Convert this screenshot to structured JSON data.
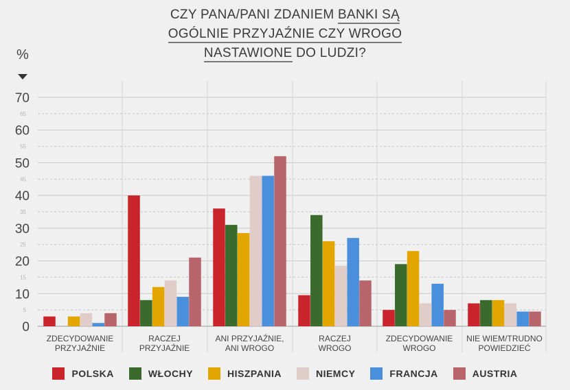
{
  "title": {
    "line1": [
      "CZY PANA/PANI ZDANIEM ",
      "BANKI SĄ"
    ],
    "line2": "OGÓLNIE PRZYJAŹNIE CZY WROGO",
    "line3": [
      "NASTAWIONE",
      " DO LUDZI?"
    ]
  },
  "unit_label": "%",
  "colors": {
    "POLSKA": "#c9242b",
    "WŁOCHY": "#3b6b2c",
    "HISZPANIA": "#e3a600",
    "NIEMCY": "#e0cdca",
    "FRANCJA": "#4a8fdc",
    "AUSTRIA": "#b7646a"
  },
  "chart_data": {
    "type": "bar",
    "title": "CZY PANA/PANI ZDANIEM BANKI SĄ OGÓLNIE PRZYJAŹNIE CZY WROGO NASTAWIONE DO LUDZI?",
    "ylabel": "%",
    "ylim": [
      0,
      70
    ],
    "major_ticks": [
      0,
      10,
      20,
      30,
      40,
      50,
      60,
      70
    ],
    "minor_ticks": [
      5,
      15,
      25,
      35,
      45,
      55,
      65
    ],
    "categories": [
      [
        "ZDECYDOWANIE",
        "PRZYJAŹNIE"
      ],
      [
        "RACZEJ",
        "PRZYJAŹNIE"
      ],
      [
        "ANI PRZYJAŹNIE,",
        "ANI WROGO"
      ],
      [
        "RACZEJ",
        "WROGO"
      ],
      [
        "ZDECYDOWANIE",
        "WROGO"
      ],
      [
        "NIE WIEM/TRUDNO",
        "POWIEDZIEĆ"
      ]
    ],
    "series": [
      {
        "name": "POLSKA",
        "values": [
          3,
          40,
          36,
          9.5,
          5,
          7
        ]
      },
      {
        "name": "WŁOCHY",
        "values": [
          0,
          8,
          31,
          34,
          19,
          8
        ]
      },
      {
        "name": "HISZPANIA",
        "values": [
          3,
          12,
          28.5,
          26,
          23,
          8
        ]
      },
      {
        "name": "NIEMCY",
        "values": [
          4,
          14,
          46,
          18.5,
          7,
          7
        ]
      },
      {
        "name": "FRANCJA",
        "values": [
          1,
          9,
          46,
          27,
          13,
          4.5
        ]
      },
      {
        "name": "AUSTRIA",
        "values": [
          4,
          21,
          52,
          14,
          5,
          4.5
        ]
      }
    ],
    "grid": true,
    "legend_position": "bottom"
  }
}
